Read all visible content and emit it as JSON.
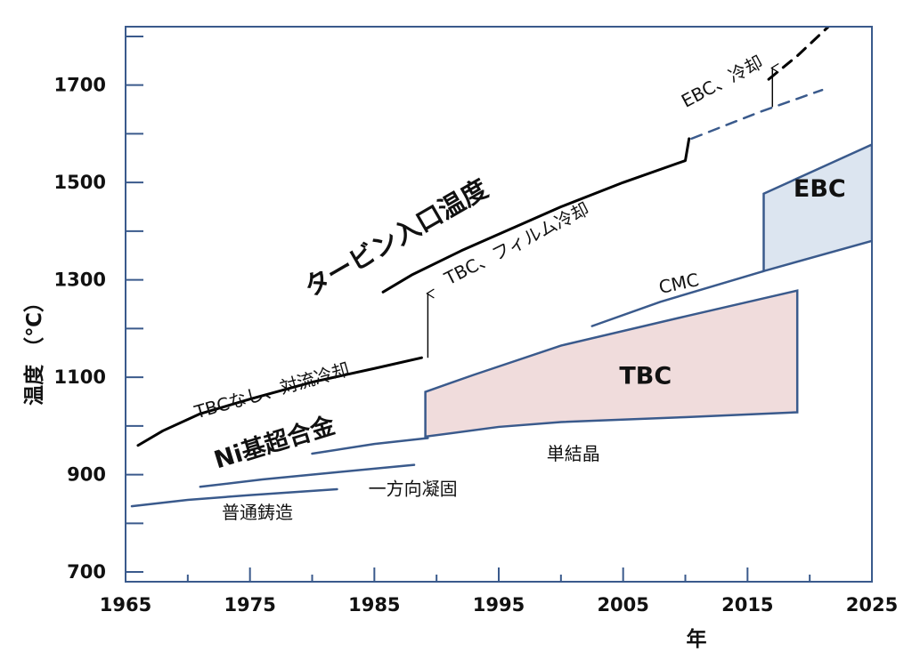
{
  "chart_data": {
    "type": "line",
    "xlabel": "年",
    "ylabel": "温度 （℃）",
    "xlim": [
      1965,
      2025
    ],
    "ylim": [
      680,
      1820
    ],
    "grid": false,
    "x_ticks": [
      "1965",
      "1975",
      "1985",
      "1995",
      "2005",
      "2015",
      "2025"
    ],
    "y_ticks": [
      "700",
      "900",
      "1100",
      "1300",
      "1500",
      "1700"
    ],
    "series": [
      {
        "name": "TBCなし、対流冷却",
        "style": "line",
        "color": "#000000",
        "points": [
          [
            1966,
            960
          ],
          [
            1968,
            990
          ],
          [
            1971,
            1025
          ],
          [
            1975,
            1055
          ],
          [
            1980,
            1090
          ],
          [
            1985,
            1118
          ],
          [
            1988.8,
            1140
          ]
        ]
      },
      {
        "name": "TBC、フィルム冷却",
        "style": "line",
        "color": "#000000",
        "points": [
          [
            1985.7,
            1275
          ],
          [
            1988,
            1310
          ],
          [
            1992,
            1360
          ],
          [
            1996,
            1405
          ],
          [
            2000,
            1450
          ],
          [
            2005,
            1500
          ],
          [
            2010,
            1545
          ],
          [
            2010.3,
            1590
          ]
        ]
      },
      {
        "style": "dashed",
        "color": "#3a5a8c",
        "points": [
          [
            2010.5,
            1590
          ],
          [
            2013,
            1615
          ],
          [
            2016,
            1645
          ],
          [
            2019,
            1672
          ],
          [
            2021,
            1690
          ]
        ]
      },
      {
        "name": "EBC、冷却",
        "style": "dashed",
        "color": "#000000",
        "points": [
          [
            2016.7,
            1712
          ],
          [
            2019,
            1760
          ],
          [
            2021.5,
            1820
          ]
        ]
      },
      {
        "name": "普通鋳造",
        "style": "line",
        "color": "#3a5a8c",
        "points": [
          [
            1965.5,
            835
          ],
          [
            1970,
            848
          ],
          [
            1975,
            858
          ],
          [
            1982,
            870
          ]
        ]
      },
      {
        "name": "一方向凝固",
        "style": "line",
        "color": "#3a5a8c",
        "points": [
          [
            1971,
            875
          ],
          [
            1976,
            890
          ],
          [
            1982,
            905
          ],
          [
            1988.2,
            920
          ]
        ]
      },
      {
        "name": "単結晶",
        "style": "line",
        "color": "#3a5a8c",
        "points": [
          [
            1980,
            943
          ],
          [
            1985,
            963
          ],
          [
            1989.3,
            975
          ]
        ]
      },
      {
        "name": "CMC",
        "style": "line",
        "color": "#3a5a8c",
        "points": [
          [
            2002.5,
            1205
          ],
          [
            2008,
            1255
          ],
          [
            2016.3,
            1318
          ]
        ]
      }
    ],
    "regions": [
      {
        "name": "TBC",
        "fill": "#f0dcdc",
        "stroke": "#3a5a8c",
        "points": [
          [
            1989.1,
            1070
          ],
          [
            1993,
            1105
          ],
          [
            2000,
            1165
          ],
          [
            2010,
            1225
          ],
          [
            2019,
            1278
          ],
          [
            2019,
            1028
          ],
          [
            2010,
            1018
          ],
          [
            2000,
            1008
          ],
          [
            1995,
            998
          ],
          [
            1989.1,
            978
          ]
        ]
      },
      {
        "name": "EBC",
        "fill": "#dce5f0",
        "stroke": "#3a5a8c",
        "points": [
          [
            2016.3,
            1477
          ],
          [
            2025,
            1578
          ],
          [
            2025,
            1380
          ],
          [
            2016.3,
            1318
          ]
        ]
      }
    ],
    "arrows": [
      {
        "x": 1989.3,
        "from": 1140,
        "to": 1272
      },
      {
        "x": 2017,
        "from": 1655,
        "to": 1735
      }
    ],
    "annotations": [
      {
        "text": "タービン入口温度",
        "x": 1986.8,
        "y": 1383,
        "angle": -30
      },
      {
        "text": "TBCなし、対流冷却",
        "x": 1976.8,
        "y": 1070,
        "angle": -16
      },
      {
        "text": "TBC、フィルム冷却",
        "x": 1996.5,
        "y": 1372,
        "angle": -27
      },
      {
        "text": "EBC、冷却",
        "x": 2013,
        "y": 1705,
        "angle": -28
      },
      {
        "text": "Ni基超合金",
        "x": 1977,
        "y": 963,
        "angle": -17
      },
      {
        "text": "CMC",
        "x": 2009.5,
        "y": 1290,
        "angle": -12
      },
      {
        "text": "単結晶",
        "x": 2001,
        "y": 940,
        "angle": 0
      },
      {
        "text": "一方向凝固",
        "x": 1988.1,
        "y": 868,
        "angle": 0
      },
      {
        "text": "普通鋳造",
        "x": 1975.6,
        "y": 820,
        "angle": 0
      },
      {
        "text": "TBC",
        "x": 2006.8,
        "y": 1100,
        "angle": 0
      },
      {
        "text": "EBC",
        "x": 2020.8,
        "y": 1485,
        "angle": 0
      }
    ]
  }
}
